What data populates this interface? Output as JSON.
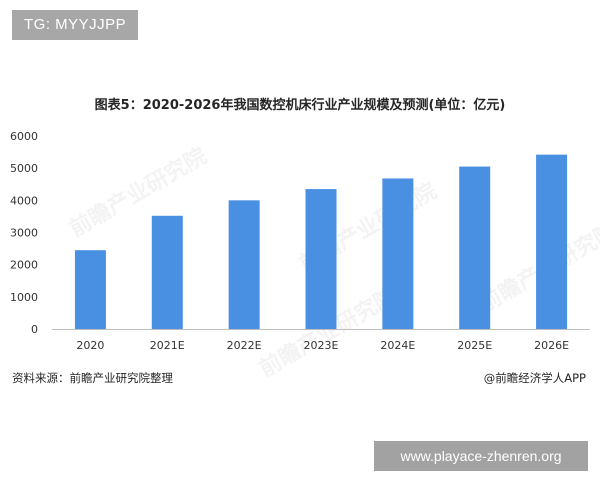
{
  "overlays": {
    "top_tag": "TG: MYYJJPP",
    "bottom_tag": "www.playace-zhenren.org"
  },
  "chart_data": {
    "type": "bar",
    "title": "图表5：2020-2026年我国数控机床行业产业规模及预测(单位：亿元)",
    "categories": [
      "2020",
      "2021E",
      "2022E",
      "2023E",
      "2024E",
      "2025E",
      "2026E"
    ],
    "values": [
      2450,
      3520,
      4000,
      4350,
      4680,
      5050,
      5420
    ],
    "ylim": [
      0,
      6000
    ],
    "yticks": [
      "0",
      "1000",
      "2000",
      "3000",
      "4000",
      "5000",
      "6000"
    ],
    "bar_color": "#4a90e2",
    "grid": false
  },
  "footer": {
    "source": "资料来源：前瞻产业研究院整理",
    "credit": "@前瞻经济学人APP"
  },
  "watermark": "前瞻产业研究院"
}
